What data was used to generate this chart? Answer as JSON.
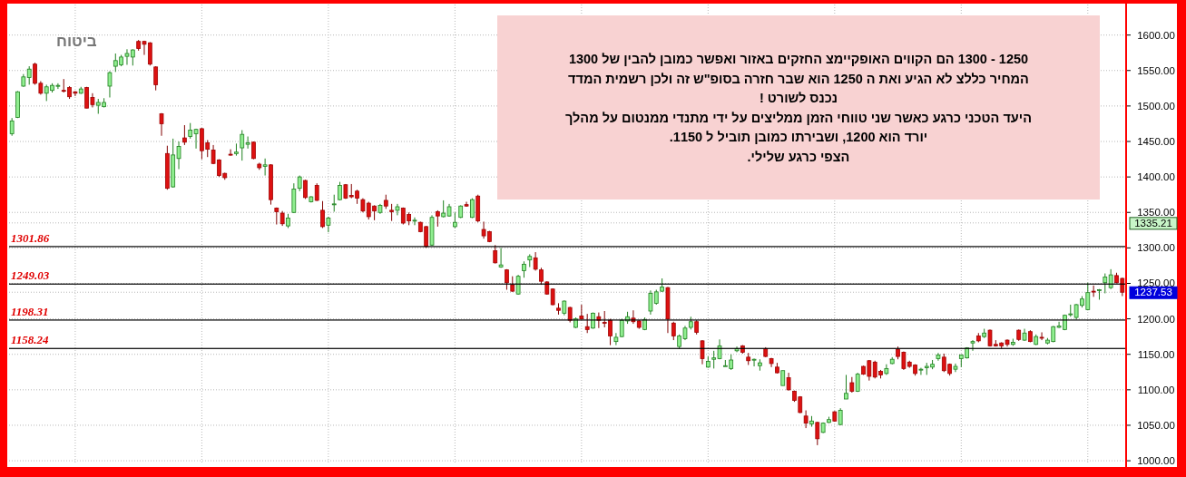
{
  "chart_data": {
    "type": "candlestick",
    "title": "ביטוח",
    "categories": [
      null,
      null,
      null,
      null,
      null,
      null,
      null,
      null,
      null,
      null,
      null,
      null,
      null,
      null,
      null,
      null,
      null,
      null,
      null,
      null,
      null,
      null,
      null,
      null,
      null,
      null,
      null,
      null,
      null,
      null,
      null,
      null,
      null,
      null,
      null,
      null,
      null,
      null,
      null,
      null,
      null,
      null,
      null,
      null,
      null,
      null,
      null,
      null,
      null,
      null,
      null,
      null,
      null,
      null,
      null,
      null,
      null,
      null,
      null,
      null,
      null,
      null,
      null,
      null,
      null,
      null,
      null,
      null,
      null,
      null,
      null,
      null,
      null,
      null,
      null,
      null,
      null,
      null,
      null,
      null,
      null,
      null,
      null,
      null,
      null,
      null,
      null,
      null,
      null,
      null,
      null,
      null,
      null,
      null,
      null,
      null,
      null,
      null,
      null,
      null,
      null,
      null,
      null,
      null,
      null,
      null,
      null,
      null,
      null,
      null,
      null,
      null,
      null,
      null,
      null,
      null,
      null,
      null,
      null,
      null,
      null,
      null,
      null,
      null,
      null,
      null,
      null,
      null,
      null,
      null,
      null,
      null,
      null,
      null,
      null,
      null,
      null,
      null,
      null,
      null,
      null,
      null,
      null,
      null,
      null,
      null,
      null,
      null,
      null,
      null,
      null,
      null,
      null,
      null,
      null,
      null,
      null,
      null,
      null,
      null,
      null,
      null,
      null,
      null,
      null,
      null,
      null,
      null,
      null,
      null,
      null,
      null,
      null,
      null,
      null,
      null,
      null,
      null,
      null,
      null,
      null,
      null,
      null,
      null,
      null,
      null,
      null,
      null,
      null,
      null,
      null,
      null,
      null,
      null
    ],
    "ohlc": [
      [
        1461,
        1483,
        1458,
        1479
      ],
      [
        1484,
        1521,
        1483,
        1520
      ],
      [
        1528,
        1545,
        1527,
        1541
      ],
      [
        1540,
        1556,
        1530,
        1552
      ],
      [
        1559,
        1561,
        1530,
        1532
      ],
      [
        1532,
        1535,
        1516,
        1518
      ],
      [
        1518,
        1530,
        1507,
        1527
      ],
      [
        1522,
        1532,
        1519,
        1529
      ],
      [
        1528,
        1532,
        1524,
        1529
      ],
      [
        1522,
        1538,
        1519,
        1521
      ],
      [
        1526,
        1528,
        1510,
        1513
      ],
      [
        1520,
        1521,
        1514,
        1518
      ],
      [
        1518,
        1527,
        1517,
        1524
      ],
      [
        1526,
        1527,
        1497,
        1497
      ],
      [
        1512,
        1518,
        1498,
        1502
      ],
      [
        1501,
        1510,
        1489,
        1505
      ],
      [
        1499,
        1511,
        1498,
        1505
      ],
      [
        1528,
        1549,
        1512,
        1547
      ],
      [
        1556,
        1574,
        1548,
        1564
      ],
      [
        1558,
        1572,
        1556,
        1569
      ],
      [
        1570,
        1580,
        1558,
        1574
      ],
      [
        1569,
        1580,
        1557,
        1579
      ],
      [
        1591,
        1593,
        1578,
        1581
      ],
      [
        1591,
        1592,
        1572,
        1587
      ],
      [
        1589,
        1590,
        1557,
        1559
      ],
      [
        1555,
        1556,
        1522,
        1530
      ],
      [
        1489,
        1490,
        1458,
        1475
      ],
      [
        1433,
        1444,
        1382,
        1384
      ],
      [
        1386,
        1454,
        1385,
        1431
      ],
      [
        1426,
        1450,
        1411,
        1443
      ],
      [
        1455,
        1473,
        1445,
        1449
      ],
      [
        1457,
        1476,
        1454,
        1466
      ],
      [
        1461,
        1468,
        1440,
        1467
      ],
      [
        1468,
        1469,
        1425,
        1437
      ],
      [
        1448,
        1452,
        1428,
        1439
      ],
      [
        1438,
        1445,
        1418,
        1419
      ],
      [
        1424,
        1425,
        1400,
        1402
      ],
      [
        1405,
        1406,
        1396,
        1399
      ],
      [
        1432,
        1439,
        1430,
        1431
      ],
      [
        1433,
        1447,
        1430,
        1435
      ],
      [
        1441,
        1466,
        1423,
        1460
      ],
      [
        1446,
        1457,
        1440,
        1448
      ],
      [
        1449,
        1450,
        1425,
        1426
      ],
      [
        1418,
        1420,
        1410,
        1413
      ],
      [
        1415,
        1426,
        1402,
        1417
      ],
      [
        1417,
        1418,
        1361,
        1368
      ],
      [
        1356,
        1357,
        1333,
        1351
      ],
      [
        1349,
        1352,
        1331,
        1334
      ],
      [
        1331,
        1348,
        1328,
        1342
      ],
      [
        1350,
        1391,
        1349,
        1383
      ],
      [
        1384,
        1402,
        1380,
        1400
      ],
      [
        1395,
        1396,
        1369,
        1371
      ],
      [
        1365,
        1373,
        1364,
        1372
      ],
      [
        1388,
        1391,
        1366,
        1367
      ],
      [
        1353,
        1366,
        1328,
        1330
      ],
      [
        1332,
        1344,
        1322,
        1342
      ],
      [
        1361,
        1375,
        1351,
        1362
      ],
      [
        1368,
        1393,
        1367,
        1388
      ],
      [
        1389,
        1390,
        1369,
        1370
      ],
      [
        1374,
        1390,
        1370,
        1372
      ],
      [
        1380,
        1382,
        1362,
        1370
      ],
      [
        1368,
        1370,
        1350,
        1352
      ],
      [
        1363,
        1365,
        1340,
        1344
      ],
      [
        1359,
        1360,
        1339,
        1352
      ],
      [
        1350,
        1362,
        1348,
        1360
      ],
      [
        1367,
        1375,
        1355,
        1359
      ],
      [
        1353,
        1362,
        1338,
        1351
      ],
      [
        1353,
        1362,
        1346,
        1358
      ],
      [
        1356,
        1357,
        1333,
        1335
      ],
      [
        1347,
        1350,
        1332,
        1338
      ],
      [
        1338,
        1343,
        1332,
        1339
      ],
      [
        1336,
        1337,
        1322,
        1323
      ],
      [
        1330,
        1331,
        1300,
        1302
      ],
      [
        1304,
        1346,
        1303,
        1343
      ],
      [
        1351,
        1353,
        1330,
        1345
      ],
      [
        1344,
        1367,
        1343,
        1349
      ],
      [
        1345,
        1362,
        1344,
        1358
      ],
      [
        1330,
        1350,
        1328,
        1336
      ],
      [
        1343,
        1360,
        1342,
        1359
      ],
      [
        1361,
        1365,
        1358,
        1359
      ],
      [
        1343,
        1370,
        1342,
        1368
      ],
      [
        1373,
        1375,
        1336,
        1338
      ],
      [
        1326,
        1337,
        1313,
        1317
      ],
      [
        1323,
        1324,
        1308,
        1309
      ],
      [
        1296,
        1304,
        1278,
        1279
      ],
      [
        1273,
        1300,
        1272,
        1276
      ],
      [
        1269,
        1270,
        1241,
        1251
      ],
      [
        1248,
        1260,
        1238,
        1239
      ],
      [
        1235,
        1262,
        1234,
        1260
      ],
      [
        1268,
        1281,
        1258,
        1277
      ],
      [
        1283,
        1291,
        1273,
        1288
      ],
      [
        1286,
        1294,
        1268,
        1270
      ],
      [
        1269,
        1272,
        1248,
        1253
      ],
      [
        1252,
        1253,
        1234,
        1235
      ],
      [
        1242,
        1243,
        1219,
        1220
      ],
      [
        1215,
        1222,
        1206,
        1212
      ],
      [
        1208,
        1226,
        1205,
        1225
      ],
      [
        1216,
        1217,
        1195,
        1198
      ],
      [
        1188,
        1202,
        1187,
        1200
      ],
      [
        1204,
        1220,
        1199,
        1200
      ],
      [
        1189,
        1207,
        1180,
        1185
      ],
      [
        1187,
        1209,
        1186,
        1208
      ],
      [
        1203,
        1209,
        1187,
        1198
      ],
      [
        1195,
        1211,
        1188,
        1194
      ],
      [
        1198,
        1200,
        1163,
        1176
      ],
      [
        1168,
        1180,
        1163,
        1174
      ],
      [
        1175,
        1200,
        1174,
        1198
      ],
      [
        1197,
        1210,
        1193,
        1203
      ],
      [
        1201,
        1212,
        1193,
        1196
      ],
      [
        1197,
        1198,
        1186,
        1188
      ],
      [
        1185,
        1202,
        1184,
        1199
      ],
      [
        1211,
        1240,
        1206,
        1236
      ],
      [
        1222,
        1241,
        1220,
        1238
      ],
      [
        1239,
        1257,
        1238,
        1245
      ],
      [
        1244,
        1245,
        1180,
        1200
      ],
      [
        1194,
        1196,
        1170,
        1176
      ],
      [
        1161,
        1178,
        1158,
        1176
      ],
      [
        1172,
        1190,
        1170,
        1187
      ],
      [
        1188,
        1203,
        1185,
        1196
      ],
      [
        1196,
        1198,
        1178,
        1181
      ],
      [
        1169,
        1170,
        1136,
        1144
      ],
      [
        1132,
        1147,
        1131,
        1140
      ],
      [
        1143,
        1155,
        1130,
        1145
      ],
      [
        1144,
        1171,
        1143,
        1162
      ],
      [
        1133,
        1142,
        1133,
        1134
      ],
      [
        1130,
        1150,
        1128,
        1142
      ],
      [
        1155,
        1161,
        1153,
        1158
      ],
      [
        1162,
        1163,
        1151,
        1153
      ],
      [
        1146,
        1152,
        1135,
        1141
      ],
      [
        1142,
        1144,
        1133,
        1143
      ],
      [
        1134,
        1143,
        1127,
        1138
      ],
      [
        1158,
        1160,
        1146,
        1147
      ],
      [
        1144,
        1145,
        1132,
        1137
      ],
      [
        1132,
        1138,
        1123,
        1124
      ],
      [
        1106,
        1127,
        1106,
        1127
      ],
      [
        1117,
        1124,
        1099,
        1100
      ],
      [
        1098,
        1099,
        1083,
        1085
      ],
      [
        1090,
        1091,
        1067,
        1068
      ],
      [
        1063,
        1071,
        1046,
        1053
      ],
      [
        1052,
        1063,
        1048,
        1056
      ],
      [
        1054,
        1055,
        1022,
        1031
      ],
      [
        1040,
        1054,
        1039,
        1053
      ],
      [
        1054,
        1062,
        1053,
        1058
      ],
      [
        1069,
        1070,
        1055,
        1056
      ],
      [
        1051,
        1074,
        1050,
        1071
      ],
      [
        1087,
        1121,
        1087,
        1095
      ],
      [
        1110,
        1118,
        1096,
        1098
      ],
      [
        1098,
        1124,
        1097,
        1122
      ],
      [
        1133,
        1134,
        1121,
        1122
      ],
      [
        1141,
        1142,
        1113,
        1119
      ],
      [
        1139,
        1141,
        1116,
        1118
      ],
      [
        1126,
        1128,
        1116,
        1121
      ],
      [
        1123,
        1136,
        1121,
        1130
      ],
      [
        1137,
        1146,
        1136,
        1143
      ],
      [
        1157,
        1161,
        1143,
        1147
      ],
      [
        1153,
        1154,
        1128,
        1130
      ],
      [
        1139,
        1141,
        1131,
        1133
      ],
      [
        1135,
        1136,
        1120,
        1123
      ],
      [
        1128,
        1131,
        1121,
        1129
      ],
      [
        1131,
        1138,
        1121,
        1133
      ],
      [
        1132,
        1142,
        1129,
        1136
      ],
      [
        1144,
        1152,
        1141,
        1149
      ],
      [
        1146,
        1151,
        1125,
        1127
      ],
      [
        1136,
        1137,
        1120,
        1123
      ],
      [
        1129,
        1137,
        1125,
        1133
      ],
      [
        1144,
        1150,
        1132,
        1149
      ],
      [
        1145,
        1160,
        1144,
        1159
      ],
      [
        1166,
        1170,
        1155,
        1168
      ],
      [
        1176,
        1180,
        1167,
        1169
      ],
      [
        1175,
        1186,
        1173,
        1180
      ],
      [
        1184,
        1185,
        1161,
        1162
      ],
      [
        1164,
        1170,
        1161,
        1162
      ],
      [
        1166,
        1167,
        1158,
        1162
      ],
      [
        1170,
        1171,
        1161,
        1164
      ],
      [
        1164,
        1172,
        1162,
        1167
      ],
      [
        1184,
        1185,
        1169,
        1171
      ],
      [
        1170,
        1186,
        1169,
        1180
      ],
      [
        1182,
        1184,
        1167,
        1168
      ],
      [
        1164,
        1178,
        1163,
        1175
      ],
      [
        1174,
        1181,
        1170,
        1173
      ],
      [
        1166,
        1173,
        1164,
        1170
      ],
      [
        1168,
        1190,
        1167,
        1189
      ],
      [
        1188,
        1196,
        1187,
        1190
      ],
      [
        1185,
        1206,
        1184,
        1205
      ],
      [
        1206,
        1220,
        1203,
        1207
      ],
      [
        1202,
        1221,
        1199,
        1220
      ],
      [
        1219,
        1232,
        1216,
        1228
      ],
      [
        1213,
        1251,
        1212,
        1237
      ],
      [
        1239,
        1247,
        1231,
        1238
      ],
      [
        1240,
        1242,
        1227,
        1241
      ],
      [
        1251,
        1264,
        1236,
        1259
      ],
      [
        1244,
        1270,
        1242,
        1262
      ],
      [
        1261,
        1265,
        1250,
        1251
      ],
      [
        1257,
        1258,
        1232,
        1237.53
      ]
    ],
    "ylim": [
      995,
      1643
    ],
    "yticks": [
      {
        "value": 1000,
        "label": "1000.00"
      },
      {
        "value": 1050,
        "label": "1050.00"
      },
      {
        "value": 1100,
        "label": "1100.00"
      },
      {
        "value": 1150,
        "label": "1150.00"
      },
      {
        "value": 1200,
        "label": "1200.00"
      },
      {
        "value": 1237.53,
        "label": "1237.53"
      },
      {
        "value": 1250,
        "label": "1250.00"
      },
      {
        "value": 1300,
        "label": "1300.00"
      },
      {
        "value": 1335.21,
        "label": "1335.21"
      },
      {
        "value": 1350,
        "label": "1350.00"
      },
      {
        "value": 1400,
        "label": "1400.00"
      },
      {
        "value": 1450,
        "label": "1450.00"
      },
      {
        "value": 1500,
        "label": "1500.00"
      },
      {
        "value": 1550,
        "label": "1550.00"
      },
      {
        "value": 1600,
        "label": "1600.00"
      }
    ],
    "grid": true,
    "ref_lines": [
      {
        "axis": "y",
        "value": 1301.86,
        "label": "1301.86",
        "color": "#000000"
      },
      {
        "axis": "y",
        "value": 1249.03,
        "label": "1249.03",
        "color": "#000000"
      },
      {
        "axis": "y",
        "value": 1198.31,
        "label": "1198.31",
        "color": "#000000"
      },
      {
        "axis": "y",
        "value": 1158.24,
        "label": "1158.24",
        "color": "#000000"
      }
    ],
    "annotations": [
      "1250 - 1300 הם הקווים האופקיימצ החזקים באזור ואפשר כמובן להבין של 1300",
      "המחיר כללצ לא הגיע ואת ה 1250 הוא שבר חזרה בסופ\"ש זה ולכן רשמית המדד",
      "נכנס לשורט !",
      "היעד הטכני כרגע כאשר שני טווחי הזמן ממליצים על ידי מתנדי ממנטום על מהלך",
      "יורד הוא 1200, ושבירתו כמובן תוביל ל 1150.",
      "הצפי כרגע שלילי."
    ]
  }
}
